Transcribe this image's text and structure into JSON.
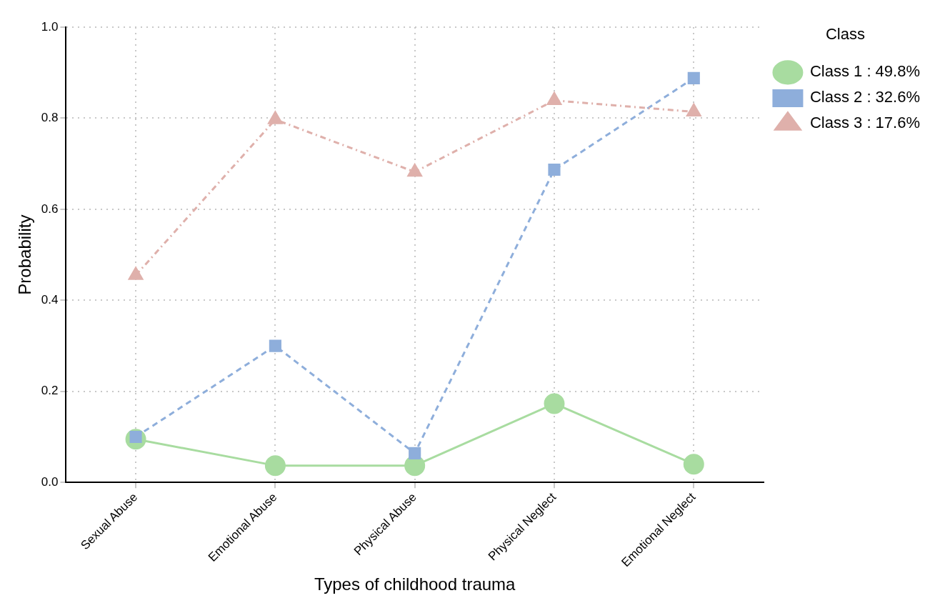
{
  "chart_data": {
    "type": "line",
    "xlabel": "Types of childhood trauma",
    "ylabel": "Probability",
    "legend_title": "Class",
    "legend": "top right",
    "grid": true,
    "categories": [
      "Sexual Abuse",
      "Emotional Abuse",
      "Physical Abuse",
      "Physical Neglect",
      "Emotional Neglect"
    ],
    "ylim": [
      0,
      1
    ],
    "yticks": [
      {
        "value": 0,
        "label": "0.0"
      },
      {
        "value": 0.2,
        "label": "0.2"
      },
      {
        "value": 0.4,
        "label": "0.4"
      },
      {
        "value": 0.6,
        "label": "0.6"
      },
      {
        "value": 0.8,
        "label": "0.8"
      },
      {
        "value": 1,
        "label": "1.0"
      }
    ],
    "series": [
      {
        "name": "Class 1 : 49.8%",
        "color": "#a8dca0",
        "marker": "circle",
        "line_style": "solid",
        "values": [
          0.095,
          0.037,
          0.037,
          0.173,
          0.04
        ]
      },
      {
        "name": "Class 2 : 32.6%",
        "color": "#8eaedb",
        "marker": "square",
        "line_style": "dashed",
        "values": [
          0.1,
          0.3,
          0.064,
          0.687,
          0.888
        ]
      },
      {
        "name": "Class 3 : 17.6%",
        "color": "#dfb0ab",
        "marker": "triangle",
        "line_style": "dashdot",
        "values": [
          0.455,
          0.797,
          0.682,
          0.839,
          0.814
        ]
      }
    ]
  }
}
